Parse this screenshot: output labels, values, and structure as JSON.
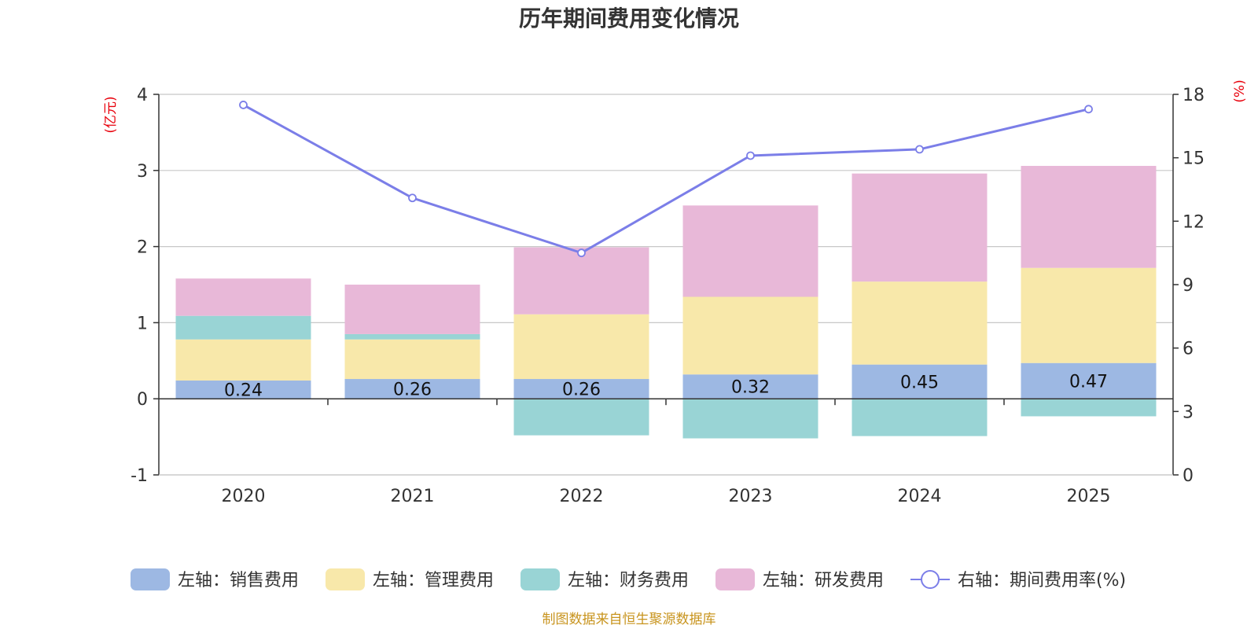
{
  "chart_data": {
    "type": "bar",
    "stacked": true,
    "title": "历年期间费用变化情况",
    "categories": [
      "2020",
      "2021",
      "2022",
      "2023",
      "2024",
      "2025"
    ],
    "left_axis": {
      "unit": "(亿元)",
      "ylim": [
        -1,
        4
      ],
      "ticks": [
        -1,
        0,
        1,
        2,
        3,
        4
      ]
    },
    "right_axis": {
      "unit": "(%)",
      "ylim": [
        0,
        18
      ],
      "ticks": [
        0,
        3,
        6,
        9,
        12,
        15,
        18
      ]
    },
    "series": [
      {
        "name": "左轴：销售费用",
        "type": "bar",
        "axis": "left",
        "color": "#9db8e3",
        "values": [
          0.24,
          0.26,
          0.26,
          0.32,
          0.45,
          0.47
        ],
        "labels": [
          "0.24",
          "0.26",
          "0.26",
          "0.32",
          "0.45",
          "0.47"
        ]
      },
      {
        "name": "左轴：管理费用",
        "type": "bar",
        "axis": "left",
        "color": "#f8e8aa",
        "values": [
          0.54,
          0.52,
          0.85,
          1.02,
          1.09,
          1.25
        ]
      },
      {
        "name": "左轴：财务费用",
        "type": "bar",
        "axis": "left",
        "color": "#99d4d5",
        "values": [
          0.31,
          0.07,
          -0.48,
          -0.52,
          -0.49,
          -0.23
        ]
      },
      {
        "name": "左轴：研发费用",
        "type": "bar",
        "axis": "left",
        "color": "#e8b8d8",
        "values": [
          0.49,
          0.65,
          0.88,
          1.2,
          1.42,
          1.34
        ]
      },
      {
        "name": "右轴：期间费用率(%)",
        "type": "line",
        "axis": "right",
        "color": "#7b7ee8",
        "values": [
          17.5,
          13.1,
          10.5,
          15.1,
          15.4,
          17.3
        ]
      }
    ],
    "legend_position": "bottom",
    "grid": true,
    "source": "制图数据来自恒生聚源数据库"
  }
}
